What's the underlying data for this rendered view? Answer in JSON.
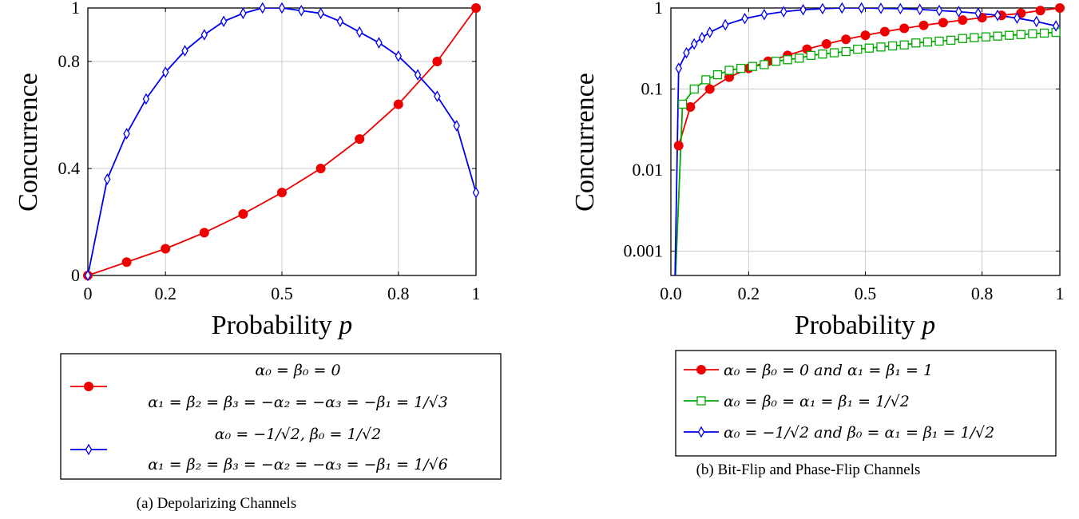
{
  "chart_data": [
    {
      "type": "line",
      "caption": "(a) Depolarizing Channels",
      "xlabel": "Probability",
      "xlabel_var": "p",
      "ylabel": "Concurrence",
      "xlim": [
        0,
        1
      ],
      "ylim": [
        0,
        1
      ],
      "xticks": [
        0,
        0.2,
        0.5,
        0.8,
        1
      ],
      "xtick_labels": [
        "0",
        "0.2",
        "0.5",
        "0.8",
        "1"
      ],
      "yticks": [
        0,
        0.4,
        0.8,
        1
      ],
      "ytick_labels": [
        "0",
        "0.4",
        "0.8",
        "1"
      ],
      "grid": true,
      "legend_position": "below",
      "series": [
        {
          "name_line1": "α₀ = β₀ = 0",
          "name_line2": "α₁ = β₂ = β₃ = −α₂ = −α₃ = −β₁ = 1/√3",
          "color": "#ee0000",
          "marker": "circle",
          "x": [
            0,
            0.1,
            0.2,
            0.3,
            0.4,
            0.5,
            0.6,
            0.7,
            0.8,
            0.9,
            1.0
          ],
          "y": [
            0,
            0.05,
            0.1,
            0.16,
            0.23,
            0.31,
            0.4,
            0.51,
            0.64,
            0.8,
            1.0
          ]
        },
        {
          "name_line1": "α₀ = −1/√2, β₀ = 1/√2",
          "name_line2": "α₁ = β₂ = β₃ = −α₂ = −α₃ = −β₁ = 1/√6",
          "color": "#0000ee",
          "marker": "diamond",
          "x": [
            0,
            0.05,
            0.1,
            0.15,
            0.2,
            0.25,
            0.3,
            0.35,
            0.4,
            0.45,
            0.5,
            0.55,
            0.6,
            0.65,
            0.7,
            0.75,
            0.8,
            0.85,
            0.9,
            0.95,
            1.0
          ],
          "y": [
            0,
            0.36,
            0.53,
            0.66,
            0.76,
            0.84,
            0.9,
            0.95,
            0.98,
            1.0,
            1.0,
            0.99,
            0.98,
            0.95,
            0.91,
            0.87,
            0.82,
            0.75,
            0.67,
            0.56,
            0.31
          ]
        }
      ]
    },
    {
      "type": "line",
      "caption": "(b) Bit-Flip and Phase-Flip Channels",
      "xlabel": "Probability",
      "xlabel_var": "p",
      "ylabel": "Concurrence",
      "yscale": "log",
      "xlim": [
        0,
        1
      ],
      "ylim": [
        0.0005,
        1
      ],
      "xticks": [
        0,
        0.2,
        0.5,
        0.8,
        1
      ],
      "xtick_labels": [
        "0.0",
        "0.2",
        "0.5",
        "0.8",
        "1"
      ],
      "yticks": [
        0.001,
        0.01,
        0.1,
        1
      ],
      "ytick_labels": [
        "0.001",
        "0.01",
        "0.1",
        "1"
      ],
      "grid": true,
      "legend_position": "below",
      "series": [
        {
          "name": "α₀ = β₀ = 0 and α₁ = β₁ = 1",
          "color": "#ee0000",
          "marker": "circle",
          "x": [
            0.02,
            0.05,
            0.1,
            0.15,
            0.2,
            0.25,
            0.3,
            0.35,
            0.4,
            0.45,
            0.5,
            0.55,
            0.6,
            0.65,
            0.7,
            0.75,
            0.8,
            0.85,
            0.9,
            0.95,
            1.0
          ],
          "y": [
            0.02,
            0.06,
            0.1,
            0.14,
            0.18,
            0.22,
            0.26,
            0.31,
            0.36,
            0.41,
            0.46,
            0.51,
            0.56,
            0.61,
            0.66,
            0.71,
            0.76,
            0.81,
            0.86,
            0.93,
            1.0
          ]
        },
        {
          "name": "α₀ = β₀ = α₁ = β₁ = 1/√2",
          "color": "#00aa00",
          "marker": "square",
          "x": [
            0.01,
            0.03,
            0.06,
            0.09,
            0.12,
            0.15,
            0.18,
            0.21,
            0.24,
            0.27,
            0.3,
            0.33,
            0.36,
            0.39,
            0.42,
            0.45,
            0.48,
            0.51,
            0.54,
            0.57,
            0.6,
            0.63,
            0.66,
            0.69,
            0.72,
            0.75,
            0.78,
            0.81,
            0.84,
            0.87,
            0.9,
            0.93,
            0.96,
            0.99
          ],
          "y": [
            0.0003,
            0.065,
            0.1,
            0.13,
            0.15,
            0.17,
            0.18,
            0.19,
            0.2,
            0.22,
            0.23,
            0.24,
            0.26,
            0.27,
            0.28,
            0.29,
            0.31,
            0.32,
            0.33,
            0.34,
            0.35,
            0.37,
            0.38,
            0.39,
            0.4,
            0.42,
            0.43,
            0.44,
            0.45,
            0.46,
            0.47,
            0.48,
            0.49,
            0.5
          ]
        },
        {
          "name": "α₀ = −1/√2 and β₀ = α₁ = β₁ = 1/√2",
          "color": "#0000ee",
          "marker": "diamond",
          "x": [
            0.01,
            0.02,
            0.04,
            0.06,
            0.08,
            0.1,
            0.14,
            0.19,
            0.24,
            0.29,
            0.34,
            0.39,
            0.44,
            0.49,
            0.54,
            0.59,
            0.64,
            0.69,
            0.74,
            0.79,
            0.84,
            0.89,
            0.94,
            0.99
          ],
          "y": [
            0.0003,
            0.18,
            0.28,
            0.36,
            0.43,
            0.5,
            0.62,
            0.74,
            0.83,
            0.9,
            0.95,
            0.98,
            1.0,
            1.0,
            0.99,
            0.98,
            0.96,
            0.93,
            0.9,
            0.86,
            0.81,
            0.75,
            0.68,
            0.6
          ]
        }
      ]
    }
  ]
}
